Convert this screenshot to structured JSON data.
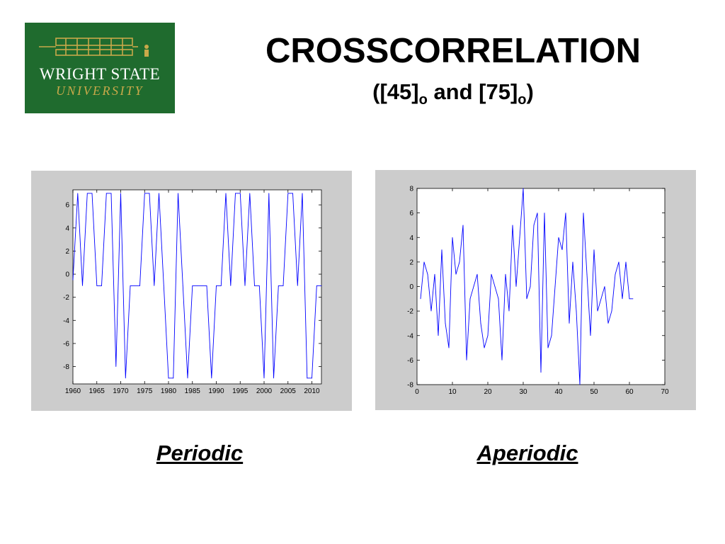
{
  "logo": {
    "line1": "WRIGHT STATE",
    "line2": "UNIVERSITY",
    "colors": {
      "background": "#1f6b2e",
      "text": "#ffffff",
      "accent": "#c9a94a"
    }
  },
  "title": "CROSSCORRELATION",
  "subtitle": {
    "open": "([45]",
    "sub1": "o",
    "mid": " and [75]",
    "sub2": "o",
    "close": ")"
  },
  "captions": {
    "left": "Periodic",
    "right": "Aperiodic"
  },
  "chart_data": [
    {
      "type": "line",
      "color": "#0000ff",
      "xlim": [
        1960,
        2012
      ],
      "ylim": [
        -9.5,
        7.3
      ],
      "xticks": [
        1960,
        1965,
        1970,
        1975,
        1980,
        1985,
        1990,
        1995,
        2000,
        2005,
        2010
      ],
      "yticks": [
        -8,
        -6,
        -4,
        -2,
        0,
        2,
        4,
        6
      ],
      "x": [
        1960,
        1961,
        1962,
        1963,
        1964,
        1965,
        1966,
        1967,
        1968,
        1969,
        1970,
        1971,
        1972,
        1973,
        1974,
        1975,
        1976,
        1977,
        1978,
        1979,
        1980,
        1981,
        1982,
        1983,
        1984,
        1985,
        1986,
        1987,
        1988,
        1989,
        1990,
        1991,
        1992,
        1993,
        1994,
        1995,
        1996,
        1997,
        1998,
        1999,
        2000,
        2001,
        2002,
        2003,
        2004,
        2005,
        2006,
        2007,
        2008,
        2009,
        2010,
        2011,
        2012
      ],
      "values": [
        -0.5,
        7,
        -1,
        7,
        7,
        -1,
        -1,
        7,
        7,
        -8,
        7,
        -9,
        -1,
        -1,
        -1,
        7,
        7,
        -1,
        7,
        -1,
        -9,
        -9,
        7,
        -1,
        -9,
        -1,
        -1,
        -1,
        -1,
        -9,
        -1,
        -1,
        7,
        -1,
        7,
        7,
        -1,
        7,
        -1,
        -1,
        -9,
        7,
        -9,
        -1,
        -1,
        7,
        7,
        -1,
        7,
        -9,
        -9,
        -1,
        -1
      ]
    },
    {
      "type": "line",
      "color": "#0000ff",
      "xlim": [
        0,
        70
      ],
      "ylim": [
        -8,
        8
      ],
      "xticks": [
        0,
        10,
        20,
        30,
        40,
        50,
        60,
        70
      ],
      "yticks": [
        -8,
        -6,
        -4,
        -2,
        0,
        2,
        4,
        6,
        8
      ],
      "x": [
        1,
        2,
        3,
        4,
        5,
        6,
        7,
        8,
        9,
        10,
        11,
        12,
        13,
        14,
        15,
        16,
        17,
        18,
        19,
        20,
        21,
        22,
        23,
        24,
        25,
        26,
        27,
        28,
        29,
        30,
        31,
        32,
        33,
        34,
        35,
        36,
        37,
        38,
        39,
        40,
        41,
        42,
        43,
        44,
        45,
        46,
        47,
        48,
        49,
        50,
        51,
        52,
        53,
        54,
        55,
        56,
        57,
        58,
        59,
        60,
        61
      ],
      "values": [
        -1,
        2,
        1,
        -2,
        1,
        -4,
        3,
        -3,
        -5,
        4,
        1,
        2,
        5,
        -6,
        -1,
        0,
        1,
        -3,
        -5,
        -4,
        1,
        0,
        -1,
        -6,
        1,
        -2,
        5,
        0,
        4,
        8,
        -1,
        0,
        5,
        6,
        -7,
        6,
        -5,
        -4,
        0,
        4,
        3,
        6,
        -3,
        2,
        -2,
        -8,
        6,
        1,
        -4,
        3,
        -2,
        -1,
        0,
        -3,
        -2,
        1,
        2,
        -1,
        2,
        -1,
        -1
      ]
    }
  ]
}
